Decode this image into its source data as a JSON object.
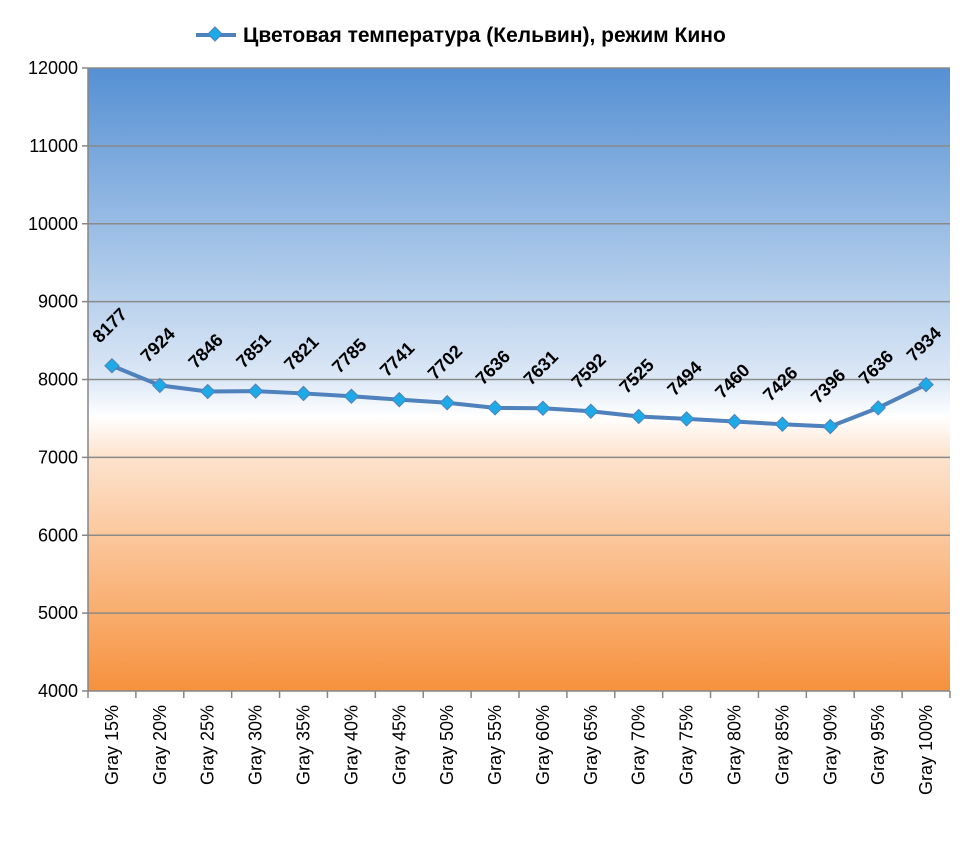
{
  "chart_data": {
    "type": "line",
    "title": "",
    "xlabel": "",
    "ylabel": "",
    "categories": [
      "Gray 15%",
      "Gray 20%",
      "Gray 25%",
      "Gray 30%",
      "Gray 35%",
      "Gray 40%",
      "Gray 45%",
      "Gray 50%",
      "Gray 55%",
      "Gray 60%",
      "Gray 65%",
      "Gray 70%",
      "Gray 75%",
      "Gray 80%",
      "Gray 85%",
      "Gray 90%",
      "Gray 95%",
      "Gray 100%"
    ],
    "series": [
      {
        "name": "Цветовая температура (Кельвин), режим Кино",
        "values": [
          8177,
          7924,
          7846,
          7851,
          7821,
          7785,
          7741,
          7702,
          7636,
          7631,
          7592,
          7525,
          7494,
          7460,
          7426,
          7396,
          7636,
          7934
        ],
        "color": "#4f81bd",
        "marker_color": "#1eaae6"
      }
    ],
    "ylim": [
      4000,
      12000
    ],
    "yticks": [
      4000,
      5000,
      6000,
      7000,
      8000,
      9000,
      10000,
      11000,
      12000
    ],
    "grid": true,
    "legend_position": "top",
    "data_labels": true,
    "background_gradient": {
      "top": "#5590d3",
      "middle": "#ffffff",
      "bottom": "#f6913d"
    }
  }
}
